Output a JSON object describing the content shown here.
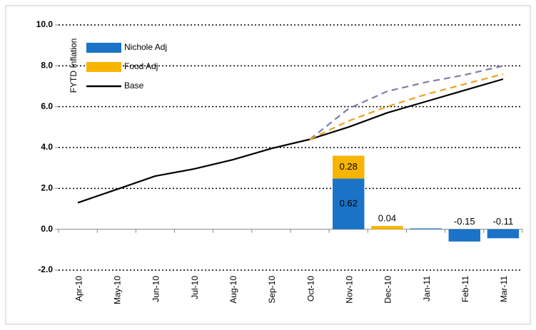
{
  "chart_data": {
    "type": "bar",
    "y_label": "FYTD Inflation",
    "categories": [
      "Apr-10",
      "May-10",
      "Jun-10",
      "Jul-10",
      "Aug-10",
      "Sep-10",
      "Oct-10",
      "Nov-10",
      "Dec-10",
      "Jan-11",
      "Feb-11",
      "Mar-11"
    ],
    "ylim": [
      -2,
      10
    ],
    "yticks": [
      {
        "value": -2,
        "label": "-2.0"
      },
      {
        "value": 0,
        "label": "0.0"
      },
      {
        "value": 2,
        "label": "2.0"
      },
      {
        "value": 4,
        "label": "4.0"
      },
      {
        "value": 6,
        "label": "6.0"
      },
      {
        "value": 8,
        "label": "8.0"
      },
      {
        "value": 10,
        "label": "10.0"
      }
    ],
    "y2lim": [
      -0.5,
      2.5
    ],
    "grid": true,
    "legend": "top-left",
    "series": [
      {
        "name": "Nichole Adj",
        "type": "bar",
        "axis": "y2",
        "color": "#1a73c6",
        "values": [
          null,
          null,
          null,
          null,
          null,
          null,
          null,
          0.62,
          null,
          0.01,
          -0.15,
          -0.11
        ],
        "value_labels": [
          null,
          null,
          null,
          null,
          null,
          null,
          null,
          "0.62",
          null,
          null,
          "-0.15",
          "-0.11"
        ]
      },
      {
        "name": "Food Adj",
        "type": "bar",
        "axis": "y2",
        "color": "#f7b500",
        "values": [
          null,
          null,
          null,
          null,
          null,
          null,
          null,
          0.28,
          0.04,
          null,
          null,
          null
        ],
        "value_labels": [
          null,
          null,
          null,
          null,
          null,
          null,
          null,
          "0.28",
          "0.04",
          null,
          null,
          null
        ]
      },
      {
        "name": "Base",
        "type": "line",
        "color": "#000000",
        "values": [
          1.3,
          1.95,
          2.6,
          2.95,
          3.4,
          3.95,
          4.4,
          5.0,
          5.7,
          6.25,
          6.8,
          7.35
        ]
      },
      {
        "type": "line",
        "dashed": true,
        "color": "#7b7fa8",
        "values": [
          null,
          null,
          null,
          null,
          null,
          null,
          4.4,
          5.9,
          6.75,
          7.2,
          7.55,
          8.0
        ]
      },
      {
        "type": "line",
        "dashed": true,
        "color": "#f0a020",
        "values": [
          null,
          null,
          null,
          null,
          null,
          null,
          4.4,
          5.3,
          6.0,
          6.6,
          7.1,
          7.6
        ]
      }
    ]
  }
}
